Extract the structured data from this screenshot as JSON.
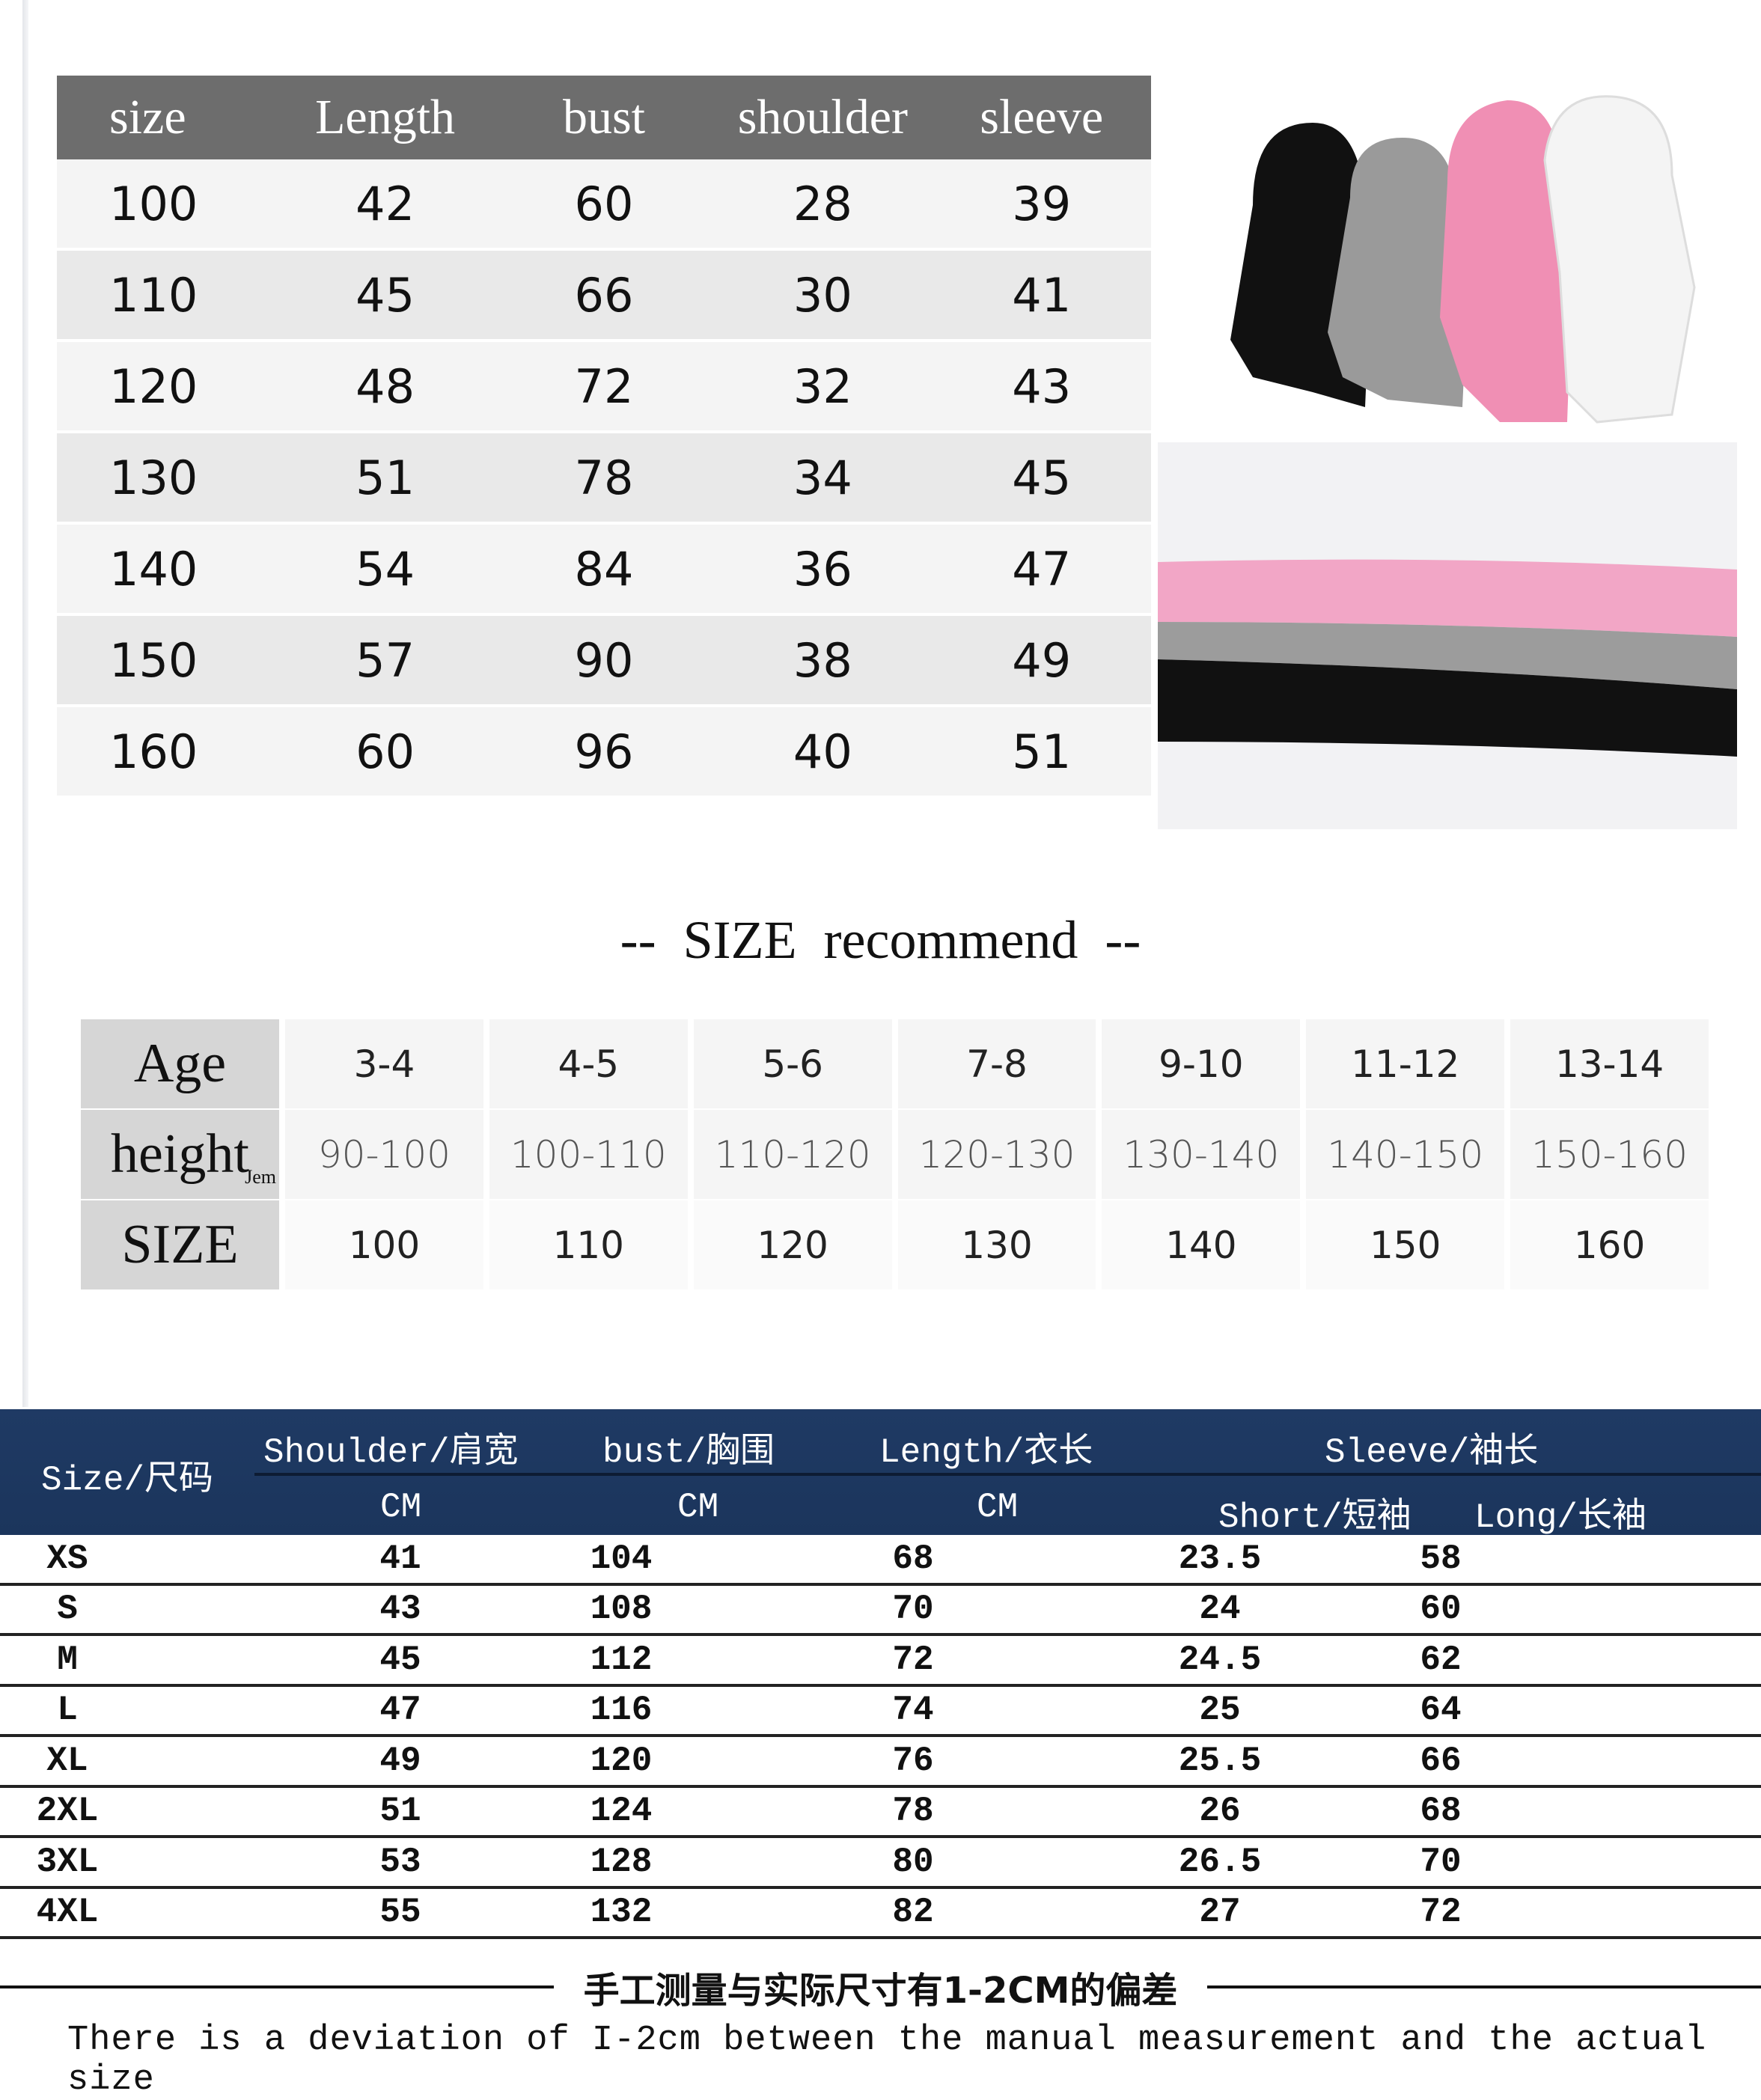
{
  "kids_table": {
    "headers": [
      "size",
      "Length",
      "bust",
      "shoulder",
      "sleeve"
    ],
    "rows": [
      [
        "100",
        "42",
        "60",
        "28",
        "39"
      ],
      [
        "110",
        "45",
        "66",
        "30",
        "41"
      ],
      [
        "120",
        "48",
        "72",
        "32",
        "43"
      ],
      [
        "130",
        "51",
        "78",
        "34",
        "45"
      ],
      [
        "140",
        "54",
        "84",
        "36",
        "47"
      ],
      [
        "150",
        "57",
        "90",
        "38",
        "49"
      ],
      [
        "160",
        "60",
        "96",
        "40",
        "51"
      ]
    ]
  },
  "product_colors": [
    "#111111",
    "#9a9a9a",
    "#f08fb4",
    "#f4f4f4"
  ],
  "recommend": {
    "title": "--  SIZE  recommend  --",
    "labels": {
      "age": "Age",
      "height": "height",
      "height_unit": "Jem",
      "size": "SIZE"
    },
    "ages": [
      "3-4",
      "4-5",
      "5-6",
      "7-8",
      "9-10",
      "11-12",
      "13-14"
    ],
    "heights": [
      "90-100",
      "100-110",
      "110-120",
      "120-130",
      "130-140",
      "140-150",
      "150-160"
    ],
    "sizes": [
      "100",
      "110",
      "120",
      "130",
      "140",
      "150",
      "160"
    ]
  },
  "adult_table": {
    "headers": {
      "size": "Size/尺码",
      "shoulder": "Shoulder/肩宽",
      "bust": "bust/胸围",
      "length": "Length/衣长",
      "sleeve": "Sleeve/袖长",
      "unit": "CM",
      "short": "Short/短袖",
      "long": "Long/长袖"
    },
    "rows": [
      [
        "XS",
        "41",
        "104",
        "68",
        "23.5",
        "58"
      ],
      [
        "S",
        "43",
        "108",
        "70",
        "24",
        "60"
      ],
      [
        "M",
        "45",
        "112",
        "72",
        "24.5",
        "62"
      ],
      [
        "L",
        "47",
        "116",
        "74",
        "25",
        "64"
      ],
      [
        "XL",
        "49",
        "120",
        "76",
        "25.5",
        "66"
      ],
      [
        "2XL",
        "51",
        "124",
        "78",
        "26",
        "68"
      ],
      [
        "3XL",
        "53",
        "128",
        "80",
        "26.5",
        "70"
      ],
      [
        "4XL",
        "55",
        "132",
        "82",
        "27",
        "72"
      ]
    ]
  },
  "footer": {
    "note_cn": "手工测量与实际尺寸有1-2CM的偏差",
    "note_en": "There is a deviation of I-2cm between the manual measurement and the actual size"
  }
}
